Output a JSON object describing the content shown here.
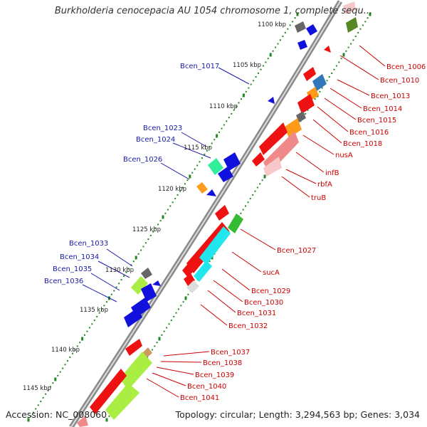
{
  "header": {
    "title": "Burkholderia cenocepacia AU 1054 chromosome 1, complete sequ..."
  },
  "footer": {
    "accession": "Accession: NC_008060",
    "topology": "Topology: circular; Length: 3,294,563 bp; Genes: 3,034"
  },
  "scale_ticks": [
    {
      "label": "1100 kbp"
    },
    {
      "label": "1105 kbp"
    },
    {
      "label": "1110 kbp"
    },
    {
      "label": "1115 kbp"
    },
    {
      "label": "1120 kbp"
    },
    {
      "label": "1125 kbp"
    },
    {
      "label": "1130 kbp"
    },
    {
      "label": "1135 kbp"
    },
    {
      "label": "1140 kbp"
    },
    {
      "label": "1145 kbp"
    }
  ],
  "left_labels": [
    {
      "text": "Bcen_1017",
      "color": "#1a1aa8"
    },
    {
      "text": "Bcen_1023",
      "color": "#1a1aa8"
    },
    {
      "text": "Bcen_1024",
      "color": "#1a1aa8"
    },
    {
      "text": "Bcen_1026",
      "color": "#1a1aa8"
    },
    {
      "text": "Bcen_1033",
      "color": "#1a1aa8"
    },
    {
      "text": "Bcen_1034",
      "color": "#1a1aa8"
    },
    {
      "text": "Bcen_1035",
      "color": "#1a1aa8"
    },
    {
      "text": "Bcen_1036",
      "color": "#1a1aa8"
    }
  ],
  "right_labels": [
    {
      "text": "Bcen_1006",
      "color": "#cc0000"
    },
    {
      "text": "Bcen_1010",
      "color": "#cc0000"
    },
    {
      "text": "Bcen_1013",
      "color": "#cc0000"
    },
    {
      "text": "Bcen_1014",
      "color": "#cc0000"
    },
    {
      "text": "Bcen_1015",
      "color": "#cc0000"
    },
    {
      "text": "Bcen_1016",
      "color": "#cc0000"
    },
    {
      "text": "Bcen_1018",
      "color": "#cc0000"
    },
    {
      "text": "nusA",
      "color": "#cc0000"
    },
    {
      "text": "infB",
      "color": "#cc0000"
    },
    {
      "text": "rbfA",
      "color": "#cc0000"
    },
    {
      "text": "truB",
      "color": "#cc0000"
    },
    {
      "text": "Bcen_1027",
      "color": "#cc0000"
    },
    {
      "text": "sucA",
      "color": "#cc0000"
    },
    {
      "text": "Bcen_1029",
      "color": "#cc0000"
    },
    {
      "text": "Bcen_1030",
      "color": "#cc0000"
    },
    {
      "text": "Bcen_1031",
      "color": "#cc0000"
    },
    {
      "text": "Bcen_1032",
      "color": "#cc0000"
    },
    {
      "text": "Bcen_1037",
      "color": "#cc0000"
    },
    {
      "text": "Bcen_1038",
      "color": "#cc0000"
    },
    {
      "text": "Bcen_1039",
      "color": "#cc0000"
    },
    {
      "text": "Bcen_1040",
      "color": "#cc0000"
    },
    {
      "text": "Bcen_1041",
      "color": "#cc0000"
    }
  ],
  "colors": {
    "backbone": "#8a8a8a",
    "forward_gene": "#ee1111",
    "reverse_gene": "#1111dd",
    "tick_dot": "#228822",
    "cyan_gene": "#22e6ee",
    "lime_gene": "#aaee44",
    "green_gene": "#33bb33",
    "orange_gene": "#ff9a1a",
    "pink_gene": "#f08a8a",
    "gray_gene": "#666666",
    "teal_gene": "#3377bb",
    "mint_gene": "#33ee99"
  }
}
